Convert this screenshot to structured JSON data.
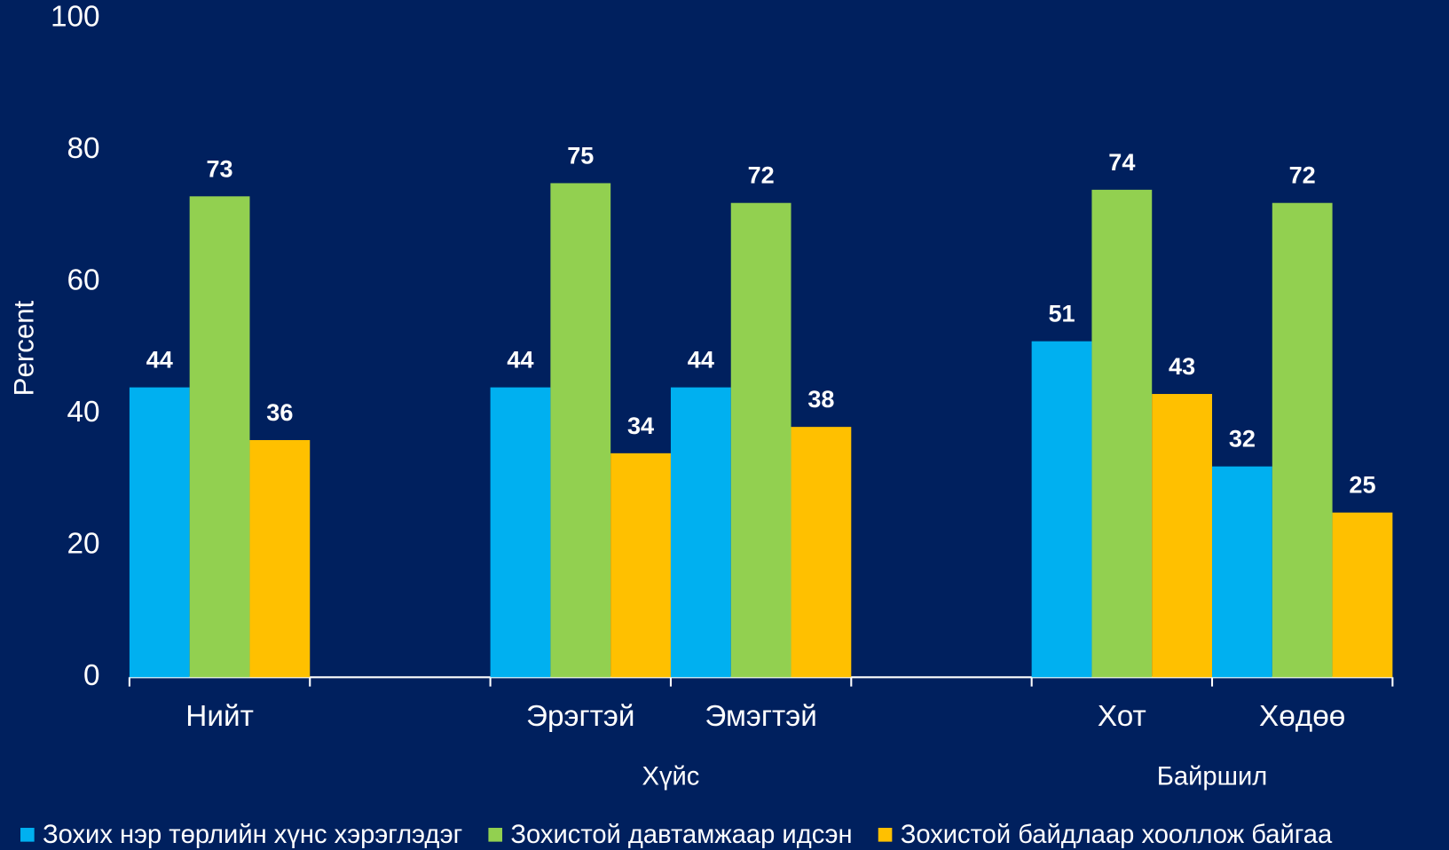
{
  "chart_data": {
    "type": "bar",
    "y_label": "Percent",
    "categories": [
      "Нийт",
      null,
      "Эрэгтэй",
      "Эмэгтэй",
      null,
      "Хот",
      "Хөдөө"
    ],
    "group_labels": [
      "Хүйс",
      "Байршил"
    ],
    "series": [
      {
        "name": "Зохих нэр төрлийн хүнс хэрэглэдэг",
        "color": "#00b0f0",
        "values": [
          44,
          null,
          44,
          44,
          null,
          51,
          32
        ]
      },
      {
        "name": "Зохистой давтамжаар идсэн",
        "color": "#92d050",
        "values": [
          73,
          null,
          75,
          72,
          null,
          74,
          72
        ]
      },
      {
        "name": "Зохистой байдлаар хооллож байгаа",
        "color": "#ffc000",
        "values": [
          36,
          null,
          34,
          38,
          null,
          43,
          25
        ]
      }
    ],
    "ylim": [
      0,
      100
    ],
    "yticks": [
      0,
      20,
      40,
      60,
      80,
      100
    ],
    "grid": false
  }
}
